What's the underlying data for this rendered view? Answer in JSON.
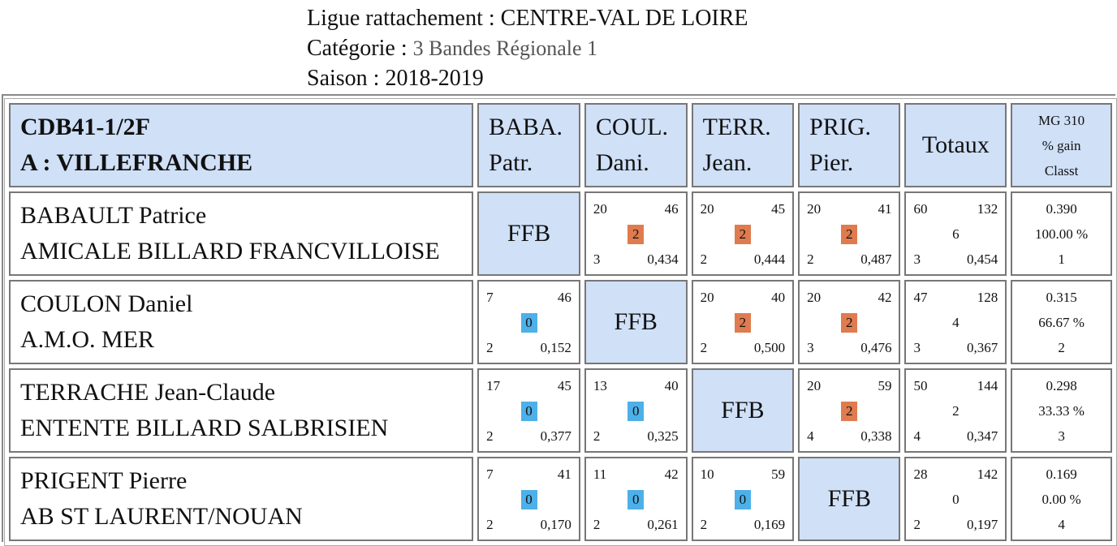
{
  "header": {
    "league_label": "Ligue rattachement : ",
    "league_value": "CENTRE-VAL DE LOIRE",
    "category_label": "Catégorie : ",
    "category_value": "3 Bandes Régionale 1",
    "season_label": "Saison : ",
    "season_value": "2018-2019"
  },
  "table": {
    "team_code": "CDB41-1/2F",
    "team_name": "A : VILLEFRANCHE",
    "columns": [
      {
        "line1": "BABA.",
        "line2": "Patr."
      },
      {
        "line1": "COUL.",
        "line2": "Dani."
      },
      {
        "line1": "TERR.",
        "line2": "Jean."
      },
      {
        "line1": "PRIG.",
        "line2": "Pier."
      }
    ],
    "totals_label": "Totaux",
    "summary_header": {
      "line1": "MG 310",
      "line2": "% gain",
      "line3": "Classt"
    },
    "ffb_label": "FFB",
    "win_color": "#e07b4f",
    "loss_color": "#4db0e8",
    "header_bg": "#cfe0f7",
    "rows": [
      {
        "name": "BABAULT Patrice",
        "club": "AMICALE BILLARD FRANCVILLOISE",
        "cells": [
          null,
          {
            "tl": "20",
            "tr": "46",
            "pts": "2",
            "bl": "3",
            "br": "0,434"
          },
          {
            "tl": "20",
            "tr": "45",
            "pts": "2",
            "bl": "2",
            "br": "0,444"
          },
          {
            "tl": "20",
            "tr": "41",
            "pts": "2",
            "bl": "2",
            "br": "0,487"
          }
        ],
        "totals": {
          "tl": "60",
          "tr": "132",
          "mid": "6",
          "bl": "3",
          "br": "0,454"
        },
        "summary": {
          "mg": "0.390",
          "pct": "100.00 %",
          "rank": "1"
        }
      },
      {
        "name": "COULON Daniel",
        "club": "A.M.O. MER",
        "cells": [
          {
            "tl": "7",
            "tr": "46",
            "pts": "0",
            "bl": "2",
            "br": "0,152"
          },
          null,
          {
            "tl": "20",
            "tr": "40",
            "pts": "2",
            "bl": "2",
            "br": "0,500"
          },
          {
            "tl": "20",
            "tr": "42",
            "pts": "2",
            "bl": "3",
            "br": "0,476"
          }
        ],
        "totals": {
          "tl": "47",
          "tr": "128",
          "mid": "4",
          "bl": "3",
          "br": "0,367"
        },
        "summary": {
          "mg": "0.315",
          "pct": "66.67 %",
          "rank": "2"
        }
      },
      {
        "name": "TERRACHE Jean-Claude",
        "club": "ENTENTE BILLARD SALBRISIEN",
        "cells": [
          {
            "tl": "17",
            "tr": "45",
            "pts": "0",
            "bl": "2",
            "br": "0,377"
          },
          {
            "tl": "13",
            "tr": "40",
            "pts": "0",
            "bl": "2",
            "br": "0,325"
          },
          null,
          {
            "tl": "20",
            "tr": "59",
            "pts": "2",
            "bl": "4",
            "br": "0,338"
          }
        ],
        "totals": {
          "tl": "50",
          "tr": "144",
          "mid": "2",
          "bl": "4",
          "br": "0,347"
        },
        "summary": {
          "mg": "0.298",
          "pct": "33.33 %",
          "rank": "3"
        }
      },
      {
        "name": "PRIGENT Pierre",
        "club": "AB ST LAURENT/NOUAN",
        "cells": [
          {
            "tl": "7",
            "tr": "41",
            "pts": "0",
            "bl": "2",
            "br": "0,170"
          },
          {
            "tl": "11",
            "tr": "42",
            "pts": "0",
            "bl": "2",
            "br": "0,261"
          },
          {
            "tl": "10",
            "tr": "59",
            "pts": "0",
            "bl": "2",
            "br": "0,169"
          },
          null
        ],
        "totals": {
          "tl": "28",
          "tr": "142",
          "mid": "0",
          "bl": "2",
          "br": "0,197"
        },
        "summary": {
          "mg": "0.169",
          "pct": "0.00 %",
          "rank": "4"
        }
      }
    ]
  }
}
